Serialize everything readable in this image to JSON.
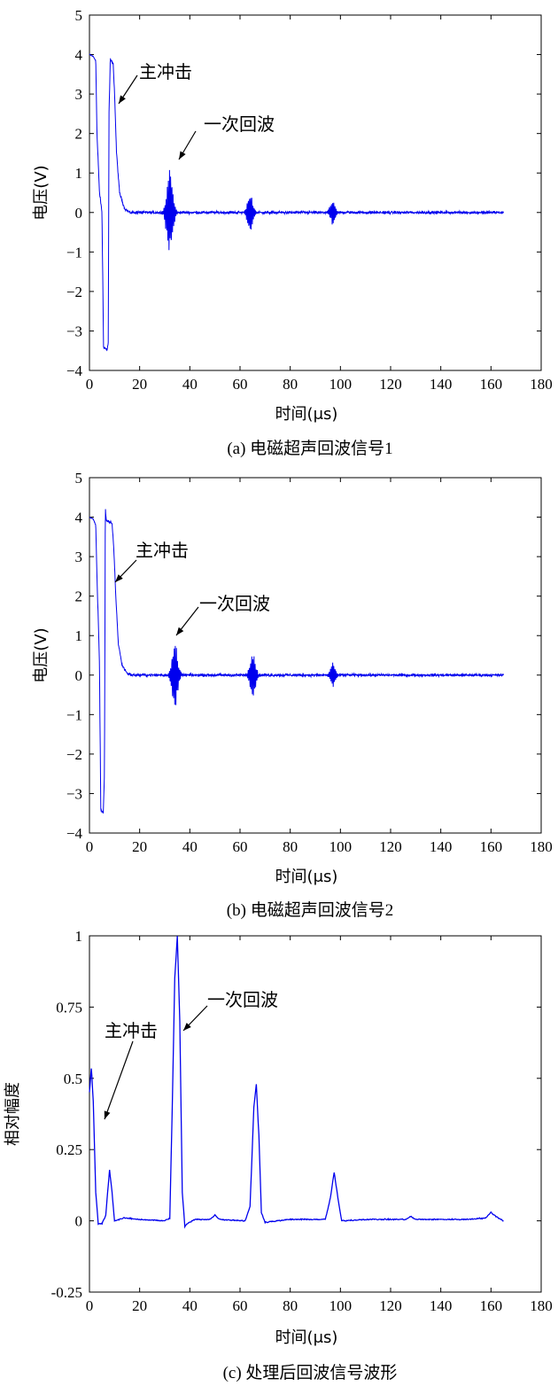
{
  "chart_data": [
    {
      "type": "line",
      "caption": "(a) 电磁超声回波信号1",
      "xlabel": "时间(μs)",
      "ylabel": "电压(V)",
      "xlim": [
        0,
        180
      ],
      "ylim": [
        -4,
        5
      ],
      "xticks": [
        0,
        20,
        40,
        60,
        80,
        100,
        120,
        140,
        160,
        180
      ],
      "yticks": [
        -4,
        -3,
        -2,
        -1,
        0,
        1,
        2,
        3,
        4,
        5
      ],
      "grid": false,
      "color": "#0000ee",
      "annotations": [
        {
          "text": "主冲击",
          "x": 8.5,
          "y": 2.8
        },
        {
          "text": "一次回波",
          "x": 37,
          "y": 1.3
        }
      ],
      "waveform": {
        "x_end": 165,
        "noise": 0.05,
        "keypoints": [
          [
            0,
            4.0
          ],
          [
            1.5,
            3.95
          ],
          [
            2.5,
            3.85
          ],
          [
            3,
            2.0
          ],
          [
            4,
            0.5
          ],
          [
            5,
            0.0
          ],
          [
            5.6,
            -3.4
          ],
          [
            7,
            -3.48
          ],
          [
            7.5,
            -3.3
          ],
          [
            7.8,
            2.5
          ],
          [
            8.3,
            3.88
          ],
          [
            9.5,
            3.75
          ],
          [
            10,
            3.0
          ],
          [
            10.8,
            1.5
          ],
          [
            12,
            0.5
          ],
          [
            14,
            0.1
          ],
          [
            16,
            0.0
          ]
        ],
        "bursts": [
          {
            "center": 32,
            "amp": 1.2,
            "width": 1.6
          },
          {
            "center": 64,
            "amp": 0.55,
            "width": 1.4
          },
          {
            "center": 97,
            "amp": 0.35,
            "width": 1.3
          }
        ]
      }
    },
    {
      "type": "line",
      "caption": "(b) 电磁超声回波信号2",
      "xlabel": "时间(μs)",
      "ylabel": "电压(V)",
      "xlim": [
        0,
        180
      ],
      "ylim": [
        -4,
        5
      ],
      "xticks": [
        0,
        20,
        40,
        60,
        80,
        100,
        120,
        140,
        160,
        180
      ],
      "yticks": [
        -4,
        -3,
        -2,
        -1,
        0,
        1,
        2,
        3,
        4,
        5
      ],
      "grid": false,
      "color": "#0000ee",
      "annotations": [
        {
          "text": "主冲击",
          "x": 10,
          "y": 2.4
        },
        {
          "text": "一次回波",
          "x": 36,
          "y": 1.0
        }
      ],
      "waveform": {
        "x_end": 165,
        "noise": 0.05,
        "keypoints": [
          [
            0,
            4.0
          ],
          [
            1.5,
            3.95
          ],
          [
            2.5,
            3.8
          ],
          [
            3,
            2.5
          ],
          [
            4,
            0.3
          ],
          [
            4.5,
            -3.4
          ],
          [
            5.5,
            -3.48
          ],
          [
            6,
            -2.5
          ],
          [
            6.3,
            4.25
          ],
          [
            6.7,
            3.9
          ],
          [
            9,
            3.85
          ],
          [
            9.7,
            3.2
          ],
          [
            10.5,
            2.0
          ],
          [
            11.5,
            0.8
          ],
          [
            13,
            0.25
          ],
          [
            15,
            0.05
          ],
          [
            17,
            0.0
          ]
        ],
        "bursts": [
          {
            "center": 34,
            "amp": 0.85,
            "width": 1.6
          },
          {
            "center": 65,
            "amp": 0.65,
            "width": 1.5
          },
          {
            "center": 97,
            "amp": 0.35,
            "width": 1.3
          }
        ]
      }
    },
    {
      "type": "line",
      "caption": "(c) 处理后回波信号波形",
      "xlabel": "时间(μs)",
      "ylabel": "相对幅度",
      "xlim": [
        0,
        180
      ],
      "ylim": [
        -0.25,
        1
      ],
      "xticks": [
        0,
        20,
        40,
        60,
        80,
        100,
        120,
        140,
        160,
        180
      ],
      "yticks": [
        -0.25,
        0,
        0.25,
        0.5,
        0.75,
        1
      ],
      "ytick_labels": [
        "-0.25",
        "0",
        "0.25",
        "0.5",
        "0.75",
        "1"
      ],
      "grid": false,
      "color": "#0000ee",
      "annotations": [
        {
          "text": "主冲击",
          "x": 8,
          "y": 0.36
        },
        {
          "text": "一次回波",
          "x": 41,
          "y": 0.69
        }
      ],
      "waveform": {
        "x_end": 165,
        "noise": 0.003,
        "keypoints": [
          [
            0,
            0.45
          ],
          [
            0.8,
            0.54
          ],
          [
            1.5,
            0.42
          ],
          [
            2.5,
            0.1
          ],
          [
            3.5,
            -0.01
          ],
          [
            5,
            -0.01
          ],
          [
            6.5,
            0.02
          ],
          [
            8,
            0.18
          ],
          [
            9,
            0.1
          ],
          [
            10,
            0.0
          ],
          [
            14,
            0.01
          ],
          [
            20,
            0.005
          ],
          [
            30,
            0.0
          ],
          [
            32,
            0.01
          ],
          [
            33,
            0.4
          ],
          [
            34,
            0.85
          ],
          [
            35,
            1.0
          ],
          [
            36,
            0.7
          ],
          [
            37,
            0.1
          ],
          [
            38,
            -0.02
          ],
          [
            39,
            -0.01
          ],
          [
            42,
            0.005
          ],
          [
            48,
            0.005
          ],
          [
            50,
            0.02
          ],
          [
            52,
            0.005
          ],
          [
            62,
            0.0
          ],
          [
            64,
            0.05
          ],
          [
            65.5,
            0.4
          ],
          [
            66.5,
            0.48
          ],
          [
            67.5,
            0.3
          ],
          [
            68.5,
            0.03
          ],
          [
            70,
            -0.005
          ],
          [
            80,
            0.005
          ],
          [
            94,
            0.005
          ],
          [
            96,
            0.08
          ],
          [
            97.5,
            0.17
          ],
          [
            99,
            0.08
          ],
          [
            100.5,
            0.0
          ],
          [
            110,
            0.005
          ],
          [
            126,
            0.005
          ],
          [
            128,
            0.015
          ],
          [
            130,
            0.005
          ],
          [
            150,
            0.005
          ],
          [
            158,
            0.01
          ],
          [
            160,
            0.03
          ],
          [
            162,
            0.015
          ],
          [
            165,
            0.0
          ]
        ]
      }
    }
  ]
}
